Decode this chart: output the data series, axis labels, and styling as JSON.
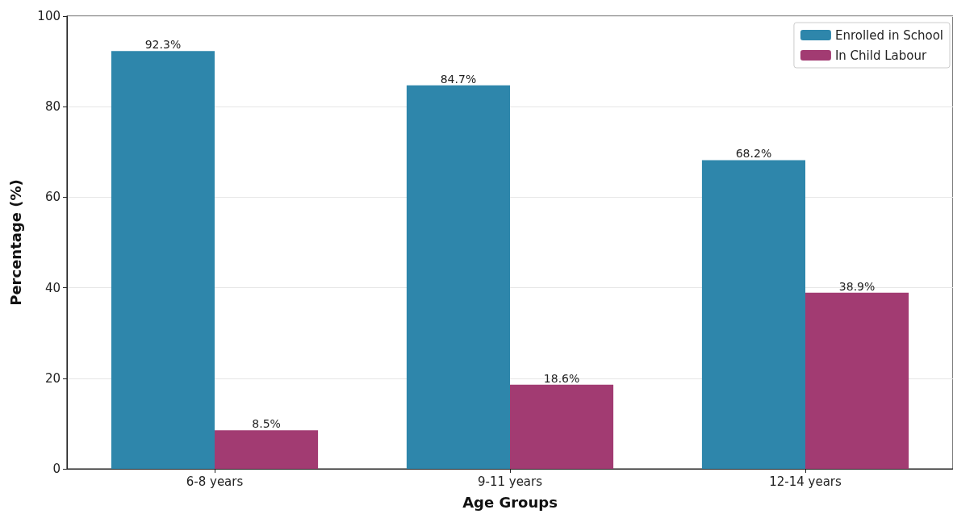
{
  "chart_data": {
    "type": "bar",
    "xlabel": "Age Groups",
    "ylabel": "Percentage (%)",
    "categories": [
      "6-8 years",
      "9-11 years",
      "12-14 years"
    ],
    "series": [
      {
        "name": "Enrolled in School",
        "color": "#2e86ab",
        "values": [
          92.3,
          84.7,
          68.2
        ],
        "value_labels": [
          "92.3%",
          "84.7%",
          "68.2%"
        ]
      },
      {
        "name": "In Child Labour",
        "color": "#a23b72",
        "values": [
          8.5,
          18.6,
          38.9
        ],
        "value_labels": [
          "8.5%",
          "18.6%",
          "38.9%"
        ]
      }
    ],
    "ylim": [
      0,
      100
    ],
    "yticks": [
      0,
      20,
      40,
      60,
      80,
      100
    ],
    "grid": "y",
    "legend": "top right"
  }
}
